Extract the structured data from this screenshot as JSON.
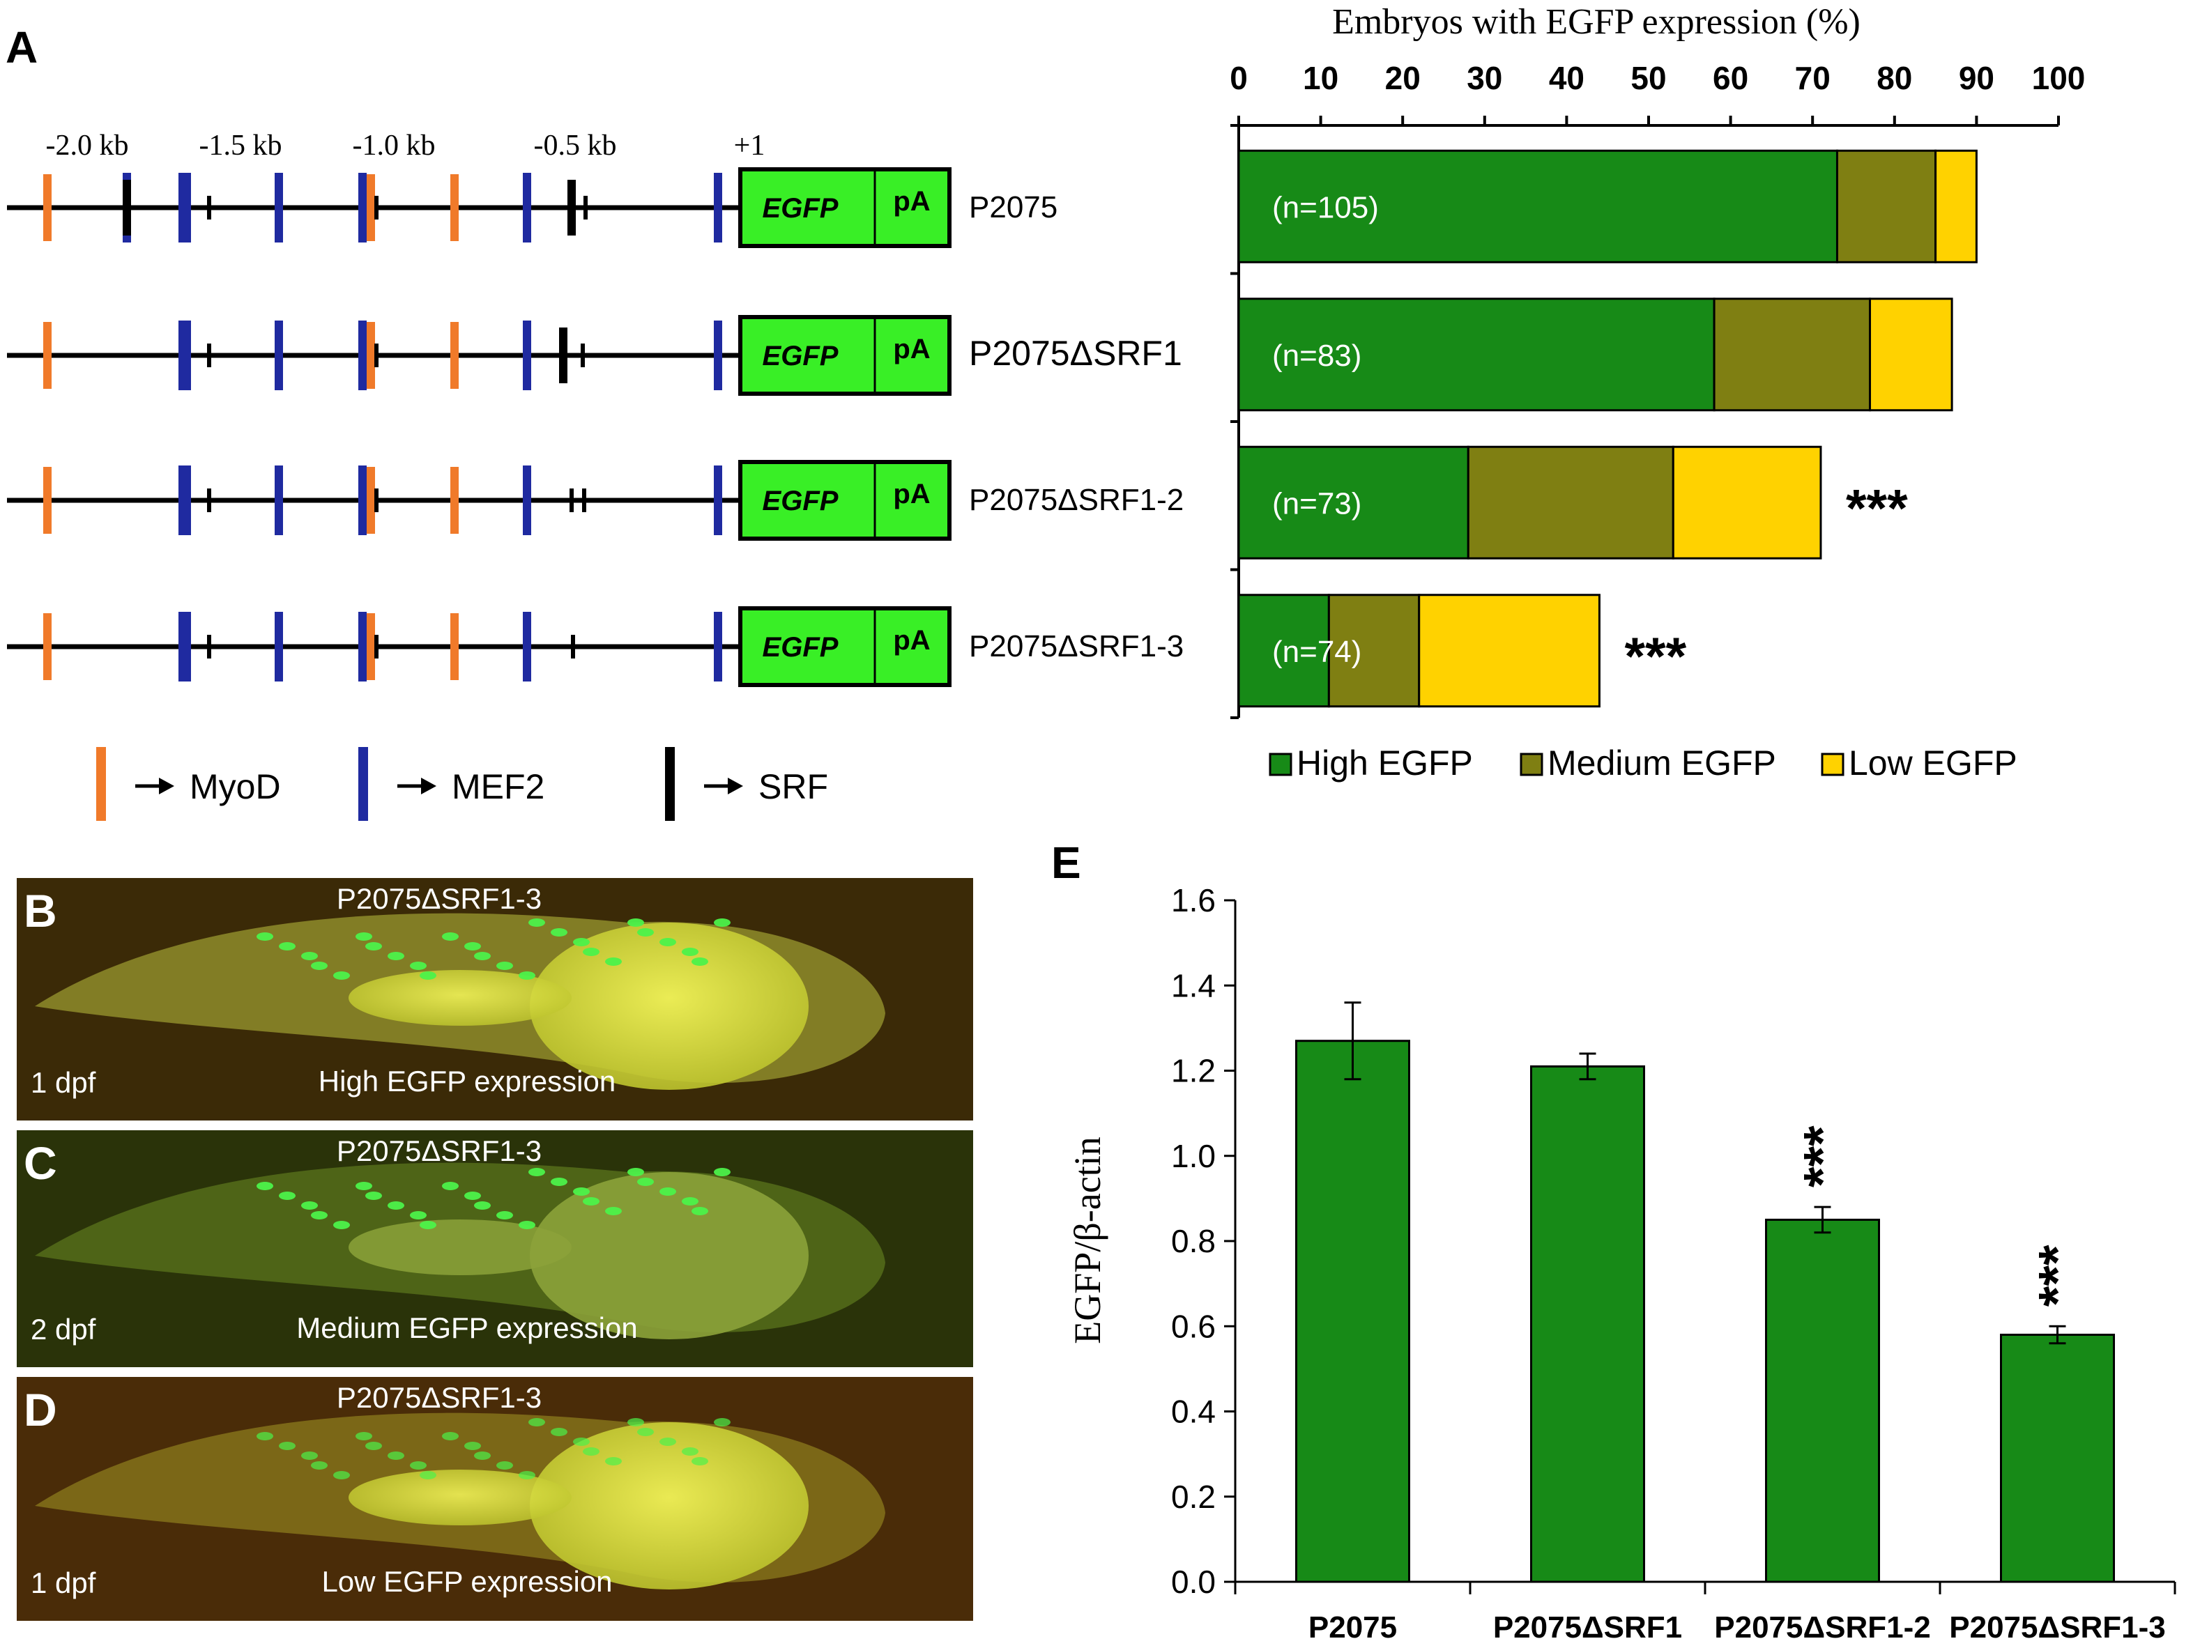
{
  "panels": {
    "A": "A",
    "B": "B",
    "C": "C",
    "D": "D",
    "E": "E"
  },
  "constructs": {
    "scale_labels": [
      "-2.0 kb",
      "-1.5 kb",
      "-1.0 kb",
      "-0.5 kb",
      "+1"
    ],
    "rows": [
      {
        "name": "P2075",
        "egfp": "EGFP",
        "pa": "pA"
      },
      {
        "name": "P2075ΔSRF1",
        "egfp": "EGFP",
        "pa": "pA"
      },
      {
        "name": "P2075ΔSRF1-2",
        "egfp": "EGFP",
        "pa": "pA"
      },
      {
        "name": "P2075ΔSRF1-3",
        "egfp": "EGFP",
        "pa": "pA"
      }
    ],
    "legend": [
      {
        "label": "MyoD",
        "color": "#f07a2a"
      },
      {
        "label": "MEF2",
        "color": "#1f2aa0"
      },
      {
        "label": "SRF",
        "color": "#000000"
      }
    ]
  },
  "embryos": [
    {
      "construct": "P2075ΔSRF1-3",
      "age": "1 dpf",
      "caption": "High EGFP expression"
    },
    {
      "construct": "P2075ΔSRF1-3",
      "age": "2 dpf",
      "caption": "Medium EGFP expression"
    },
    {
      "construct": "P2075ΔSRF1-3",
      "age": "1 dpf",
      "caption": "Low EGFP expression"
    }
  ],
  "chart_data": [
    {
      "type": "bar",
      "orientation": "horizontal",
      "stacked": true,
      "title": "Embryos with EGFP expression (%)",
      "xlim": [
        0,
        100
      ],
      "xticks": [
        0,
        10,
        20,
        30,
        40,
        50,
        60,
        70,
        80,
        90,
        100
      ],
      "categories": [
        "P2075",
        "P2075ΔSRF1",
        "P2075ΔSRF1-2",
        "P2075ΔSRF1-3"
      ],
      "n_labels": [
        "(n=105)",
        "(n=83)",
        "(n=73)",
        "(n=74)"
      ],
      "significance": [
        "",
        "",
        "***",
        "***"
      ],
      "series": [
        {
          "name": "High EGFP",
          "color": "#178a17",
          "values": [
            73,
            58,
            28,
            11
          ]
        },
        {
          "name": "Medium EGFP",
          "color": "#7f7f12",
          "values": [
            12,
            19,
            25,
            11
          ]
        },
        {
          "name": "Low EGFP",
          "color": "#ffd200",
          "values": [
            5,
            10,
            18,
            22
          ]
        }
      ],
      "legend_position": "bottom"
    },
    {
      "type": "bar",
      "ylabel": "EGFP/β-actin",
      "ylim": [
        0,
        1.6
      ],
      "yticks": [
        "0.0",
        "0.2",
        "0.4",
        "0.6",
        "0.8",
        "1.0",
        "1.2",
        "1.4",
        "1.6"
      ],
      "categories": [
        "P2075",
        "P2075ΔSRF1",
        "P2075ΔSRF1-2",
        "P2075ΔSRF1-3"
      ],
      "values": [
        1.27,
        1.21,
        0.85,
        0.58
      ],
      "errors": [
        0.09,
        0.03,
        0.03,
        0.02
      ],
      "significance": [
        "",
        "",
        "***",
        "***"
      ],
      "color": "#178a17"
    }
  ]
}
